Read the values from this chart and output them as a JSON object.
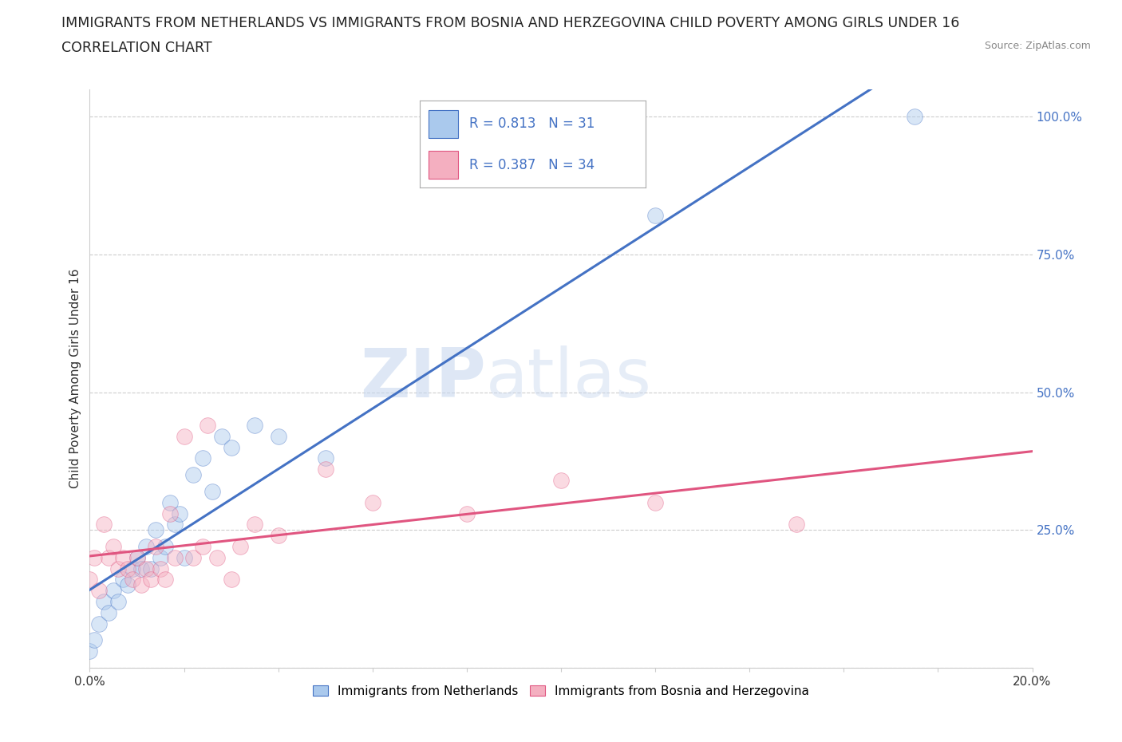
{
  "title_line1": "IMMIGRANTS FROM NETHERLANDS VS IMMIGRANTS FROM BOSNIA AND HERZEGOVINA CHILD POVERTY AMONG GIRLS UNDER 16",
  "title_line2": "CORRELATION CHART",
  "source_text": "Source: ZipAtlas.com",
  "ylabel": "Child Poverty Among Girls Under 16",
  "xlim": [
    0,
    0.2
  ],
  "ylim": [
    0,
    1.05
  ],
  "watermark_zip": "ZIP",
  "watermark_atlas": "atlas",
  "legend_labels": [
    "Immigrants from Netherlands",
    "Immigrants from Bosnia and Herzegovina"
  ],
  "series1": {
    "name": "Immigrants from Netherlands",
    "color": "#aac9ed",
    "line_color": "#4472c4",
    "R": 0.813,
    "N": 31,
    "x": [
      0.0,
      0.001,
      0.002,
      0.003,
      0.004,
      0.005,
      0.006,
      0.007,
      0.008,
      0.009,
      0.01,
      0.011,
      0.012,
      0.013,
      0.014,
      0.015,
      0.016,
      0.017,
      0.018,
      0.019,
      0.02,
      0.022,
      0.024,
      0.026,
      0.028,
      0.03,
      0.035,
      0.04,
      0.05,
      0.12,
      0.175
    ],
    "y": [
      0.03,
      0.05,
      0.08,
      0.12,
      0.1,
      0.14,
      0.12,
      0.16,
      0.15,
      0.18,
      0.2,
      0.18,
      0.22,
      0.18,
      0.25,
      0.2,
      0.22,
      0.3,
      0.26,
      0.28,
      0.2,
      0.35,
      0.38,
      0.32,
      0.42,
      0.4,
      0.44,
      0.42,
      0.38,
      0.82,
      1.0
    ]
  },
  "series2": {
    "name": "Immigrants from Bosnia and Herzegovina",
    "color": "#f4afc0",
    "line_color": "#e05580",
    "R": 0.387,
    "N": 34,
    "x": [
      0.0,
      0.001,
      0.002,
      0.003,
      0.004,
      0.005,
      0.006,
      0.007,
      0.008,
      0.009,
      0.01,
      0.011,
      0.012,
      0.013,
      0.014,
      0.015,
      0.016,
      0.017,
      0.018,
      0.02,
      0.022,
      0.024,
      0.025,
      0.027,
      0.03,
      0.032,
      0.035,
      0.04,
      0.05,
      0.06,
      0.08,
      0.1,
      0.12,
      0.15
    ],
    "y": [
      0.16,
      0.2,
      0.14,
      0.26,
      0.2,
      0.22,
      0.18,
      0.2,
      0.18,
      0.16,
      0.2,
      0.15,
      0.18,
      0.16,
      0.22,
      0.18,
      0.16,
      0.28,
      0.2,
      0.42,
      0.2,
      0.22,
      0.44,
      0.2,
      0.16,
      0.22,
      0.26,
      0.24,
      0.36,
      0.3,
      0.28,
      0.34,
      0.3,
      0.26
    ]
  },
  "background_color": "#ffffff",
  "grid_color": "#cccccc",
  "marker_size": 200,
  "marker_alpha": 0.45,
  "title_fontsize": 12.5,
  "subtitle_fontsize": 12.5,
  "axis_label_fontsize": 11,
  "tick_fontsize": 11,
  "legend_fontsize": 11,
  "right_tick_color": "#4472c4"
}
